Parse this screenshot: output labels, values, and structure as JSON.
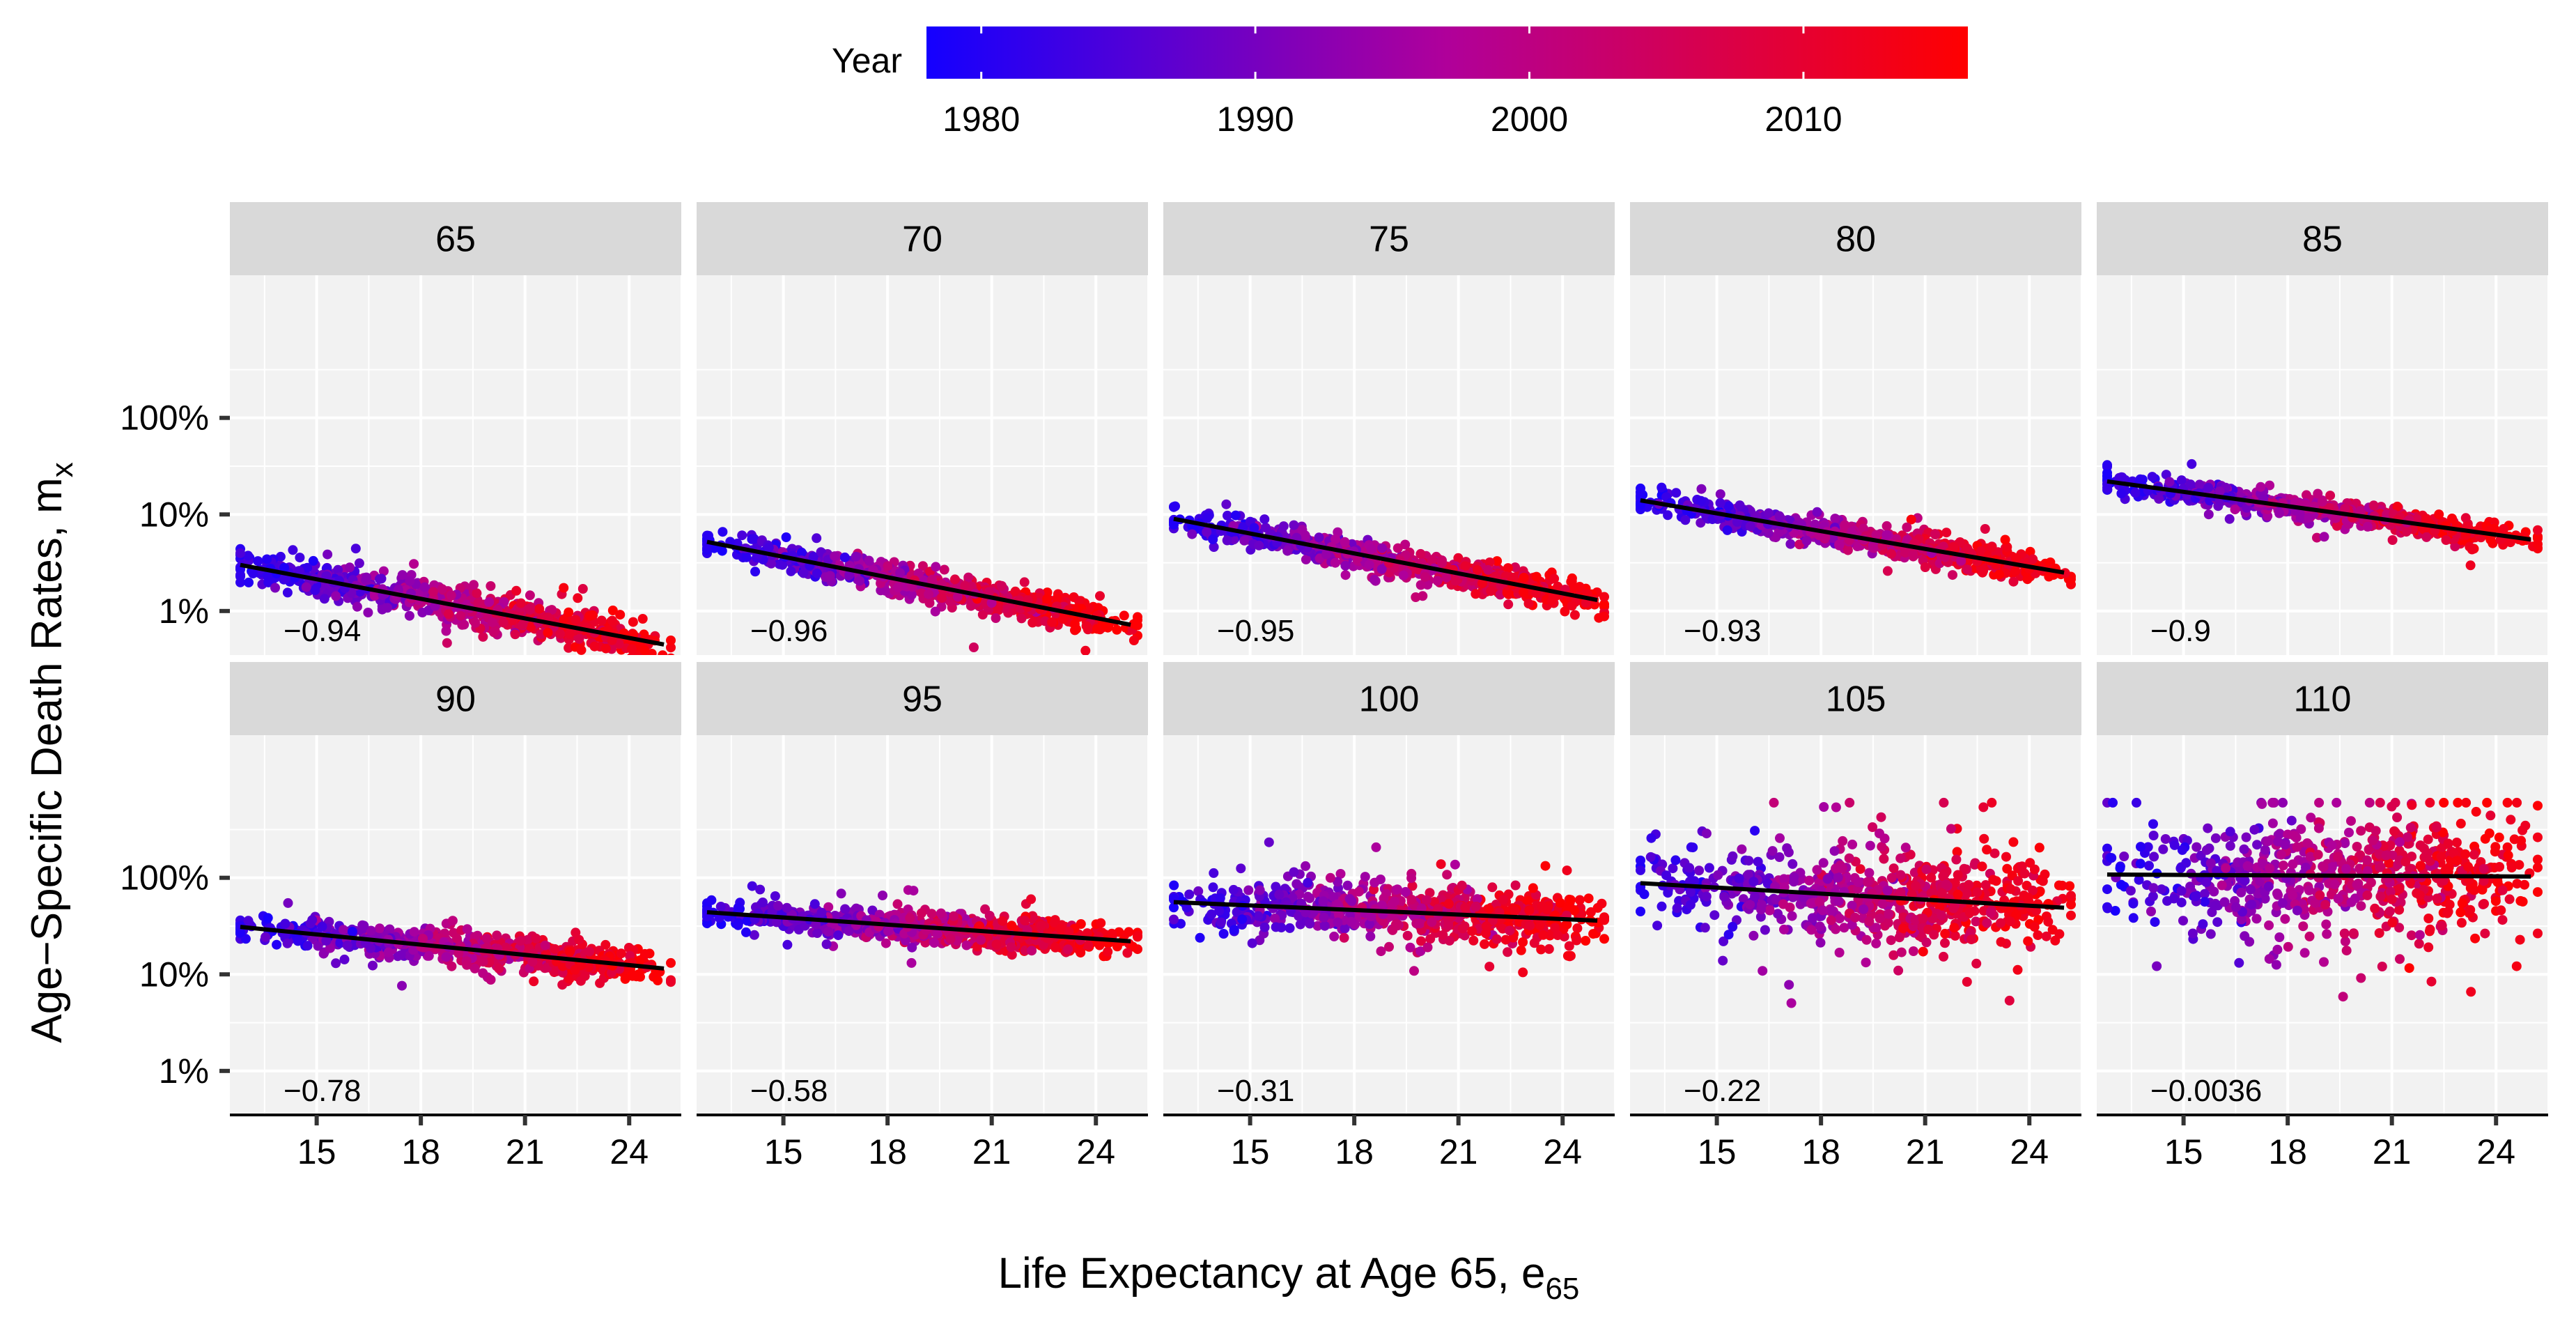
{
  "chart_data": {
    "type": "scatter",
    "layout": "faceted 2x5 small multiples with linear fit lines",
    "xlabel": "Life Expectancy at Age 65, e",
    "xlabel_subscript": "65",
    "ylabel": "Age−Specific Death Rates, m",
    "ylabel_subscript": "x",
    "x_ticks": [
      15,
      18,
      21,
      24
    ],
    "x_tick_labels": [
      "15",
      "18",
      "21",
      "24"
    ],
    "xlim": [
      12.5,
      25.5
    ],
    "y_scale": "log10",
    "y_ticks": [
      0.01,
      0.1,
      1
    ],
    "y_tick_labels": [
      "1%",
      "10%",
      "100%"
    ],
    "ylim": [
      0.0035,
      30
    ],
    "legend": {
      "title": "Year",
      "type": "continuous colorbar",
      "placement": "top",
      "range": [
        1978,
        2016
      ],
      "ticks": [
        1980,
        1990,
        2000,
        2010
      ],
      "tick_labels": [
        "1980",
        "1990",
        "2000",
        "2010"
      ],
      "color_low": "#1400FF",
      "color_mid": "#B0009A",
      "color_high": "#FF0000"
    },
    "colors": {
      "strip_background": "#D9D9D9",
      "panel_background": "#F2F2F2",
      "grid": "#FFFFFF",
      "fit_line": "#000000"
    },
    "panels": [
      {
        "age": "65",
        "correlation": "−0.94",
        "fit": {
          "x0": 12.8,
          "y0": 0.03,
          "x1": 25.0,
          "y1": 0.0045
        },
        "noise_dex": 0.1,
        "outlier_share": 0.03
      },
      {
        "age": "70",
        "correlation": "−0.96",
        "fit": {
          "x0": 12.8,
          "y0": 0.052,
          "x1": 25.0,
          "y1": 0.0072
        },
        "noise_dex": 0.08,
        "outlier_share": 0.03
      },
      {
        "age": "75",
        "correlation": "−0.95",
        "fit": {
          "x0": 12.8,
          "y0": 0.09,
          "x1": 25.0,
          "y1": 0.013
        },
        "noise_dex": 0.08,
        "outlier_share": 0.04
      },
      {
        "age": "80",
        "correlation": "−0.93",
        "fit": {
          "x0": 12.8,
          "y0": 0.14,
          "x1": 25.0,
          "y1": 0.025
        },
        "noise_dex": 0.07,
        "outlier_share": 0.04
      },
      {
        "age": "85",
        "correlation": "−0.9",
        "fit": {
          "x0": 12.8,
          "y0": 0.22,
          "x1": 25.0,
          "y1": 0.055
        },
        "noise_dex": 0.06,
        "outlier_share": 0.03
      },
      {
        "age": "90",
        "correlation": "−0.78",
        "fit": {
          "x0": 12.8,
          "y0": 0.31,
          "x1": 25.0,
          "y1": 0.115
        },
        "noise_dex": 0.08,
        "outlier_share": 0.06
      },
      {
        "age": "95",
        "correlation": "−0.58",
        "fit": {
          "x0": 12.8,
          "y0": 0.44,
          "x1": 25.0,
          "y1": 0.22
        },
        "noise_dex": 0.08,
        "outlier_share": 0.05
      },
      {
        "age": "100",
        "correlation": "−0.31",
        "fit": {
          "x0": 12.8,
          "y0": 0.56,
          "x1": 25.0,
          "y1": 0.36
        },
        "noise_dex": 0.13,
        "outlier_share": 0.08
      },
      {
        "age": "105",
        "correlation": "−0.22",
        "fit": {
          "x0": 12.8,
          "y0": 0.88,
          "x1": 25.0,
          "y1": 0.49
        },
        "noise_dex": 0.22,
        "outlier_share": 0.1
      },
      {
        "age": "110",
        "correlation": "−0.0036",
        "fit": {
          "x0": 12.8,
          "y0": 1.08,
          "x1": 25.0,
          "y1": 1.03
        },
        "noise_dex": 0.28,
        "outlier_share": 0.12
      }
    ],
    "points_per_panel": 700
  }
}
